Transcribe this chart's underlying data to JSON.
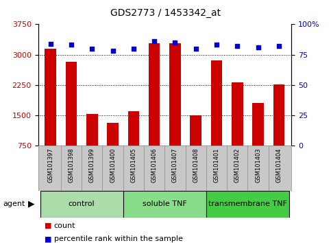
{
  "title": "GDS2773 / 1453342_at",
  "samples": [
    "GSM101397",
    "GSM101398",
    "GSM101399",
    "GSM101400",
    "GSM101405",
    "GSM101406",
    "GSM101407",
    "GSM101408",
    "GSM101401",
    "GSM101402",
    "GSM101403",
    "GSM101404"
  ],
  "counts": [
    3150,
    2820,
    1540,
    1320,
    1600,
    3280,
    3280,
    1510,
    2860,
    2320,
    1800,
    2270
  ],
  "percentiles": [
    84,
    83,
    80,
    78,
    80,
    86,
    85,
    80,
    83,
    82,
    81,
    82
  ],
  "groups": [
    {
      "label": "control",
      "start": 0,
      "end": 3,
      "color": "#aaddaa"
    },
    {
      "label": "soluble TNF",
      "start": 4,
      "end": 7,
      "color": "#88dd88"
    },
    {
      "label": "transmembrane TNF",
      "start": 8,
      "end": 11,
      "color": "#44cc44"
    }
  ],
  "bar_color": "#cc0000",
  "dot_color": "#0000cc",
  "ymin": 750,
  "ymax": 3750,
  "yticks_left": [
    750,
    1500,
    2250,
    3000,
    3750
  ],
  "yticks_right": [
    0,
    25,
    50,
    75,
    100
  ],
  "grid_values": [
    1500,
    2250,
    3000
  ],
  "bar_width": 0.55,
  "agent_label": "agent",
  "legend_count_label": "count",
  "legend_pct_label": "percentile rank within the sample",
  "bar_color_rgb": "#cc0000",
  "dot_color_rgb": "#0000cc",
  "tick_area_color": "#c8c8c8",
  "title_fontsize": 10,
  "axis_fontsize": 8,
  "sample_fontsize": 6,
  "group_fontsize": 8,
  "legend_fontsize": 8
}
